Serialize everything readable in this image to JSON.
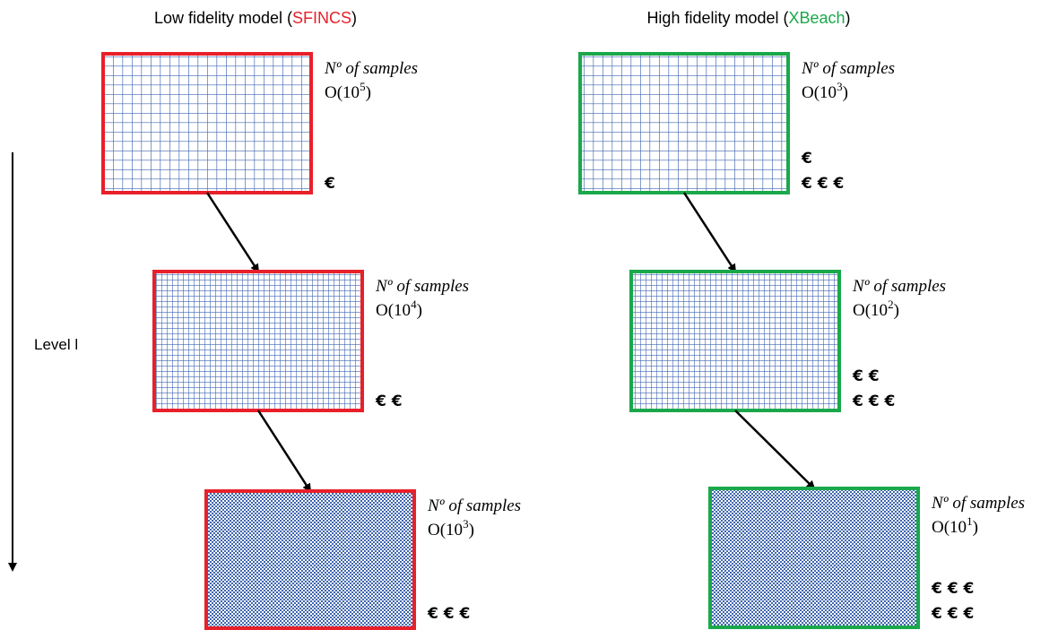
{
  "axis_label": "Level l",
  "columns": [
    {
      "title": {
        "prefix": "Low fidelity model (",
        "model": "SFINCS",
        "suffix": ")"
      },
      "color": "#e8202a",
      "levels": [
        {
          "samples_label": "Nº of samples",
          "order": {
            "base": "O(10",
            "exponent": "5",
            "close": ")"
          },
          "cost": [
            "€"
          ]
        },
        {
          "samples_label": "Nº of samples",
          "order": {
            "base": "O(10",
            "exponent": "4",
            "close": ")"
          },
          "cost": [
            "€ €"
          ]
        },
        {
          "samples_label": "Nº of samples",
          "order": {
            "base": "O(10",
            "exponent": "3",
            "close": ")"
          },
          "cost": [
            "€ € €"
          ]
        }
      ]
    },
    {
      "title": {
        "prefix": "High fidelity model (",
        "model": "XBeach",
        "suffix": ")"
      },
      "color": "#1aa84b",
      "levels": [
        {
          "samples_label": "Nº of samples",
          "order": {
            "base": "O(10",
            "exponent": "3",
            "close": ")"
          },
          "cost": [
            "€",
            "€ € €"
          ]
        },
        {
          "samples_label": "Nº of samples",
          "order": {
            "base": "O(10",
            "exponent": "2",
            "close": ")"
          },
          "cost": [
            "€ €",
            "€ € €"
          ]
        },
        {
          "samples_label": "Nº of samples",
          "order": {
            "base": "O(10",
            "exponent": "1",
            "close": ")"
          },
          "cost": [
            "€ € €",
            "€ € €"
          ]
        }
      ]
    }
  ]
}
